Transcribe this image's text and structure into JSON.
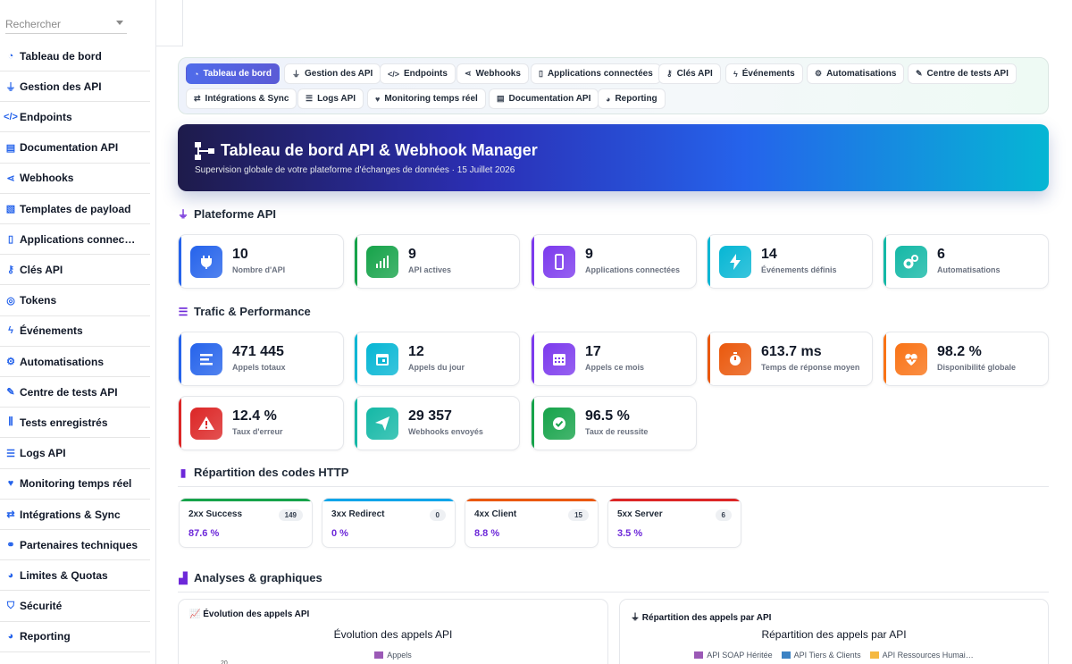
{
  "search": {
    "placeholder": "Rechercher"
  },
  "sidebar": {
    "items": [
      {
        "label": "Tableau de bord",
        "icon": "gauge-icon"
      },
      {
        "label": "Gestion des API",
        "icon": "plug-icon"
      },
      {
        "label": "Endpoints",
        "icon": "code-icon"
      },
      {
        "label": "Documentation API",
        "icon": "book-icon"
      },
      {
        "label": "Webhooks",
        "icon": "share-nodes-icon"
      },
      {
        "label": "Templates de payload",
        "icon": "file-code-icon"
      },
      {
        "label": "Applications connec…",
        "icon": "mobile-icon"
      },
      {
        "label": "Clés API",
        "icon": "key-icon"
      },
      {
        "label": "Tokens",
        "icon": "fingerprint-icon"
      },
      {
        "label": "Événements",
        "icon": "bolt-icon"
      },
      {
        "label": "Automatisations",
        "icon": "gears-icon"
      },
      {
        "label": "Centre de tests API",
        "icon": "pen-icon"
      },
      {
        "label": "Tests enregistrés",
        "icon": "vials-icon"
      },
      {
        "label": "Logs API",
        "icon": "list-icon"
      },
      {
        "label": "Monitoring temps réel",
        "icon": "heart-pulse-icon"
      },
      {
        "label": "Intégrations & Sync",
        "icon": "arrows-icon"
      },
      {
        "label": "Partenaires techniques",
        "icon": "handshake-icon"
      },
      {
        "label": "Limites & Quotas",
        "icon": "gauge-high-icon"
      },
      {
        "label": "Sécurité",
        "icon": "shield-icon"
      },
      {
        "label": "Reporting",
        "icon": "chart-pie-icon"
      }
    ]
  },
  "tabs": [
    {
      "label": "Tableau de bord",
      "icon": "◔",
      "active": true
    },
    {
      "label": "Gestion des API",
      "icon": "⏚"
    },
    {
      "label": "Endpoints",
      "icon": "</>"
    },
    {
      "label": "Webhooks",
      "icon": "⋖"
    },
    {
      "label": "Applications connectées",
      "icon": "▯"
    },
    {
      "label": "Clés API",
      "icon": "⚷"
    },
    {
      "label": "Événements",
      "icon": "ϟ"
    },
    {
      "label": "Automatisations",
      "icon": "⚙"
    },
    {
      "label": "Centre de tests API",
      "icon": "✎"
    },
    {
      "label": "Intégrations & Sync",
      "icon": "⇄"
    },
    {
      "label": "Logs API",
      "icon": "☰"
    },
    {
      "label": "Monitoring temps réel",
      "icon": "♥"
    },
    {
      "label": "Documentation API",
      "icon": "▤"
    },
    {
      "label": "Reporting",
      "icon": "◕"
    }
  ],
  "hero": {
    "title": "Tableau de bord API & Webhook Manager",
    "subtitle": "Supervision globale de votre plateforme d'échanges de données · 15 Juillet 2026"
  },
  "sections": {
    "plateforme": "Plateforme API",
    "trafic": "Trafic & Performance",
    "http": "Répartition des codes HTTP",
    "analyses": "Analyses & graphiques"
  },
  "platform_kpis": [
    {
      "value": "10",
      "label": "Nombre d'API",
      "color": "#2563eb",
      "icon": "plug-icon"
    },
    {
      "value": "9",
      "label": "API actives",
      "color": "#16a34a",
      "icon": "signal-icon"
    },
    {
      "value": "9",
      "label": "Applications connectées",
      "color": "#7c3aed",
      "icon": "mobile-icon"
    },
    {
      "value": "14",
      "label": "Événements définis",
      "color": "#06b6d4",
      "icon": "bolt-icon"
    },
    {
      "value": "6",
      "label": "Automatisations",
      "color": "#14b8a6",
      "icon": "gears-icon"
    }
  ],
  "traffic_kpis": [
    {
      "value": "471 445",
      "label": "Appels totaux",
      "color": "#2563eb",
      "icon": "list-icon"
    },
    {
      "value": "12",
      "label": "Appels du jour",
      "color": "#06b6d4",
      "icon": "calendar-icon"
    },
    {
      "value": "17",
      "label": "Appels ce mois",
      "color": "#7c3aed",
      "icon": "calendar-grid-icon"
    },
    {
      "value": "613.7 ms",
      "label": "Temps de réponse moyen",
      "color": "#ea580c",
      "icon": "stopwatch-icon"
    },
    {
      "value": "98.2 %",
      "label": "Disponibilité globale",
      "color": "#f97316",
      "icon": "heart-pulse-icon"
    },
    {
      "value": "12.4 %",
      "label": "Taux d'erreur",
      "color": "#dc2626",
      "icon": "warning-icon"
    },
    {
      "value": "29 357",
      "label": "Webhooks envoyés",
      "color": "#14b8a6",
      "icon": "paper-plane-icon"
    },
    {
      "value": "96.5 %",
      "label": "Taux de reussite",
      "color": "#16a34a",
      "icon": "check-circle-icon"
    }
  ],
  "http_codes": [
    {
      "name": "2xx Success",
      "count": "149",
      "pct": "87.6 %",
      "color": "#16a34a"
    },
    {
      "name": "3xx Redirect",
      "count": "0",
      "pct": "0 %",
      "color": "#0ea5e9"
    },
    {
      "name": "4xx Client",
      "count": "15",
      "pct": "8.8 %",
      "color": "#ea580c"
    },
    {
      "name": "5xx Server",
      "count": "6",
      "pct": "3.5 %",
      "color": "#dc2626"
    }
  ],
  "charts": {
    "left": {
      "head": "Évolution des appels API",
      "head_icon": "chart-line-icon",
      "title": "Évolution des appels API",
      "legend": [
        {
          "label": "Appels",
          "color": "#9b59b6"
        }
      ],
      "tick": "20"
    },
    "right": {
      "head": "Répartition des appels par API",
      "head_icon": "plug-icon",
      "title": "Répartition des appels par API",
      "legend": [
        {
          "label": "API SOAP Héritée",
          "color": "#9b59b6"
        },
        {
          "label": "API Tiers & Clients",
          "color": "#3b82c4"
        },
        {
          "label": "API Ressources Humai…",
          "color": "#f5b942"
        }
      ]
    }
  },
  "colors": {
    "accent": "#6d28d9",
    "brand_gradient_start": "#1e1b4b",
    "brand_gradient_end": "#06b6d4"
  }
}
